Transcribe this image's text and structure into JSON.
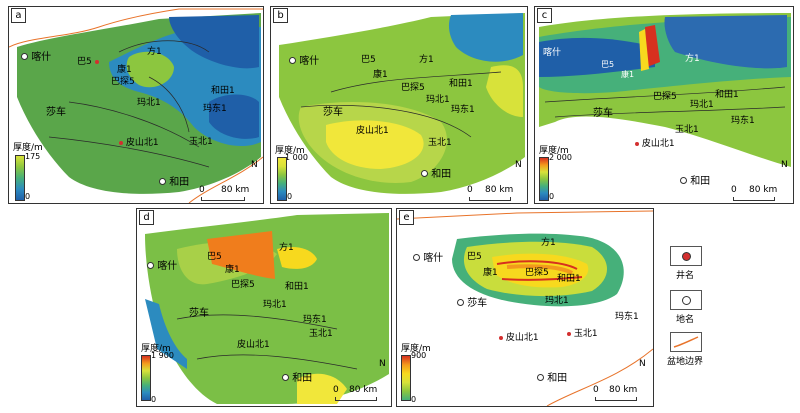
{
  "panels": [
    {
      "id": "a",
      "label": "a",
      "thickness_title": "厚度/m",
      "thickness_max": "175",
      "thickness_min": "0",
      "places": {
        "kashi": "喀什",
        "shache": "莎车",
        "hetian": "和田"
      },
      "wells": {
        "ba5": "巴5",
        "kang1": "康1",
        "batan5": "巴探5",
        "fang1": "方1",
        "hetian1": "和田1",
        "madong1": "玛东1",
        "mabei1": "玛北1",
        "pishanbei1": "皮山北1",
        "yubei1": "玉北1"
      }
    },
    {
      "id": "b",
      "label": "b",
      "thickness_title": "厚度/m",
      "thickness_max": "1 000",
      "thickness_min": "0",
      "places": {
        "kashi": "喀什",
        "shache": "莎车",
        "hetian": "和田"
      },
      "wells": {
        "ba5": "巴5",
        "kang1": "康1",
        "batan5": "巴探5",
        "fang1": "方1",
        "hetian1": "和田1",
        "madong1": "玛东1",
        "mabei1": "玛北1",
        "pishanbei1": "皮山北1",
        "yubei1": "玉北1"
      }
    },
    {
      "id": "c",
      "label": "c",
      "thickness_title": "厚度/m",
      "thickness_max": "2 000",
      "thickness_min": "0",
      "places": {
        "kashi": "喀什",
        "shache": "莎车",
        "hetian": "和田"
      },
      "wells": {
        "ba5": "巴5",
        "kang1": "康1",
        "batan5": "巴探5",
        "fang1": "方1",
        "hetian1": "和田1",
        "madong1": "玛东1",
        "mabei1": "玛北1",
        "pishanbei1": "皮山北1",
        "yubei1": "玉北1"
      }
    },
    {
      "id": "d",
      "label": "d",
      "thickness_title": "厚度/m",
      "thickness_max": "1 900",
      "thickness_min": "0",
      "places": {
        "kashi": "喀什",
        "shache": "莎车",
        "hetian": "和田"
      },
      "wells": {
        "ba5": "巴5",
        "kang1": "康1",
        "batan5": "巴探5",
        "fang1": "方1",
        "hetian1": "和田1",
        "madong1": "玛东1",
        "mabei1": "玛北1",
        "pishanbei1": "皮山北1",
        "yubei1": "玉北1"
      }
    },
    {
      "id": "e",
      "label": "e",
      "thickness_title": "厚度/m",
      "thickness_max": "900",
      "thickness_min": "0",
      "places": {
        "kashi": "喀什",
        "shache": "莎车",
        "hetian": "和田"
      },
      "wells": {
        "ba5": "巴5",
        "kang1": "康1",
        "batan5": "巴探5",
        "fang1": "方1",
        "hetian1": "和田1",
        "madong1": "玛东1",
        "mabei1": "玛北1",
        "pishanbei1": "皮山北1",
        "yubei1": "玉北1"
      }
    }
  ],
  "scale_bar": {
    "zero": "0",
    "value": "80 km"
  },
  "north": "N",
  "legend": {
    "well": "井名",
    "place": "地名",
    "boundary": "盆地边界"
  },
  "colors": {
    "boundary": "#e8732a",
    "well": "#d32f2f",
    "ramp": [
      "#1f5fa8",
      "#2c8bbf",
      "#46b07a",
      "#8cc63f",
      "#d8e23a",
      "#f7d91e",
      "#f39a1c",
      "#d7301f"
    ]
  }
}
